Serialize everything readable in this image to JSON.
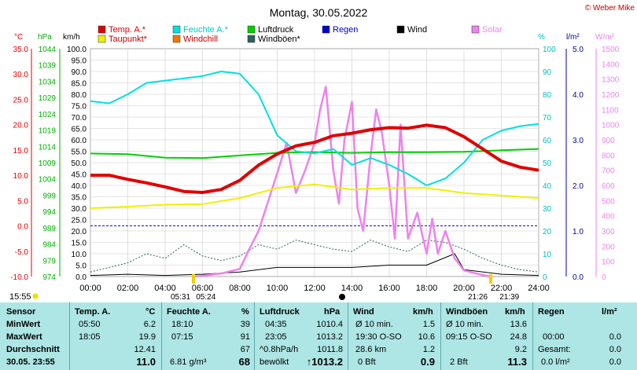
{
  "header": {
    "title": "Montag, 30.05.2022",
    "copyright": "© Weber Mike"
  },
  "legend": [
    {
      "label": "Temp. A.*",
      "color": "#e00000"
    },
    {
      "label": "Feuchte A.*",
      "color": "#00e0e0"
    },
    {
      "label": "Luftdruck",
      "color": "#00d000"
    },
    {
      "label": "Regen",
      "color": "#0000d0"
    },
    {
      "label": "Wind",
      "color": "#000000"
    },
    {
      "label": "Solar",
      "color": "#ee82ee"
    },
    {
      "label": "Taupunkt*",
      "color": "#f0f000"
    },
    {
      "label": "Windchill",
      "color": "#f07800"
    },
    {
      "label": "Windböen*",
      "color": "#306060"
    }
  ],
  "axis_units": {
    "temp": "°C",
    "press": "hPa",
    "wind": "km/h",
    "hum": "%",
    "rain": "l/m²",
    "solar": "W/m²"
  },
  "axes": {
    "temp": {
      "ticks": [
        "35.0",
        "30.0",
        "25.0",
        "20.0",
        "15.0",
        "10.0",
        "5.0",
        "0.0",
        "-5.0",
        "-10.0"
      ],
      "color": "#e00000"
    },
    "press": {
      "ticks": [
        "1044",
        "1039",
        "1034",
        "1029",
        "1024",
        "1019",
        "1014",
        "1009",
        "1004",
        "999",
        "994",
        "989",
        "984",
        "979",
        "974"
      ],
      "color": "#00b000"
    },
    "wind": {
      "ticks": [
        "100.0",
        "95.0",
        "90.0",
        "85.0",
        "80.0",
        "75.0",
        "70.0",
        "65.0",
        "60.0",
        "55.0",
        "50.0",
        "45.0",
        "40.0",
        "35.0",
        "30.0",
        "25.0",
        "20.0",
        "15.0",
        "10.0",
        "5.0",
        "0.0"
      ],
      "color": "#000000"
    },
    "hum": {
      "ticks": [
        "100",
        "90",
        "80",
        "70",
        "60",
        "50",
        "40",
        "30",
        "20",
        "10",
        "0"
      ],
      "color": "#00c0c0"
    },
    "rain": {
      "ticks": [
        "5.0",
        "4.0",
        "3.0",
        "2.0",
        "1.0",
        "0.0"
      ],
      "color": "#000090"
    },
    "solar": {
      "ticks": [
        "1500",
        "1400",
        "1300",
        "1200",
        "1100",
        "1000",
        "900",
        "800",
        "700",
        "600",
        "500",
        "400",
        "300",
        "200",
        "100",
        "0"
      ],
      "color": "#ee82ee"
    },
    "x": {
      "ticks": [
        "00:00",
        "02:00",
        "04:00",
        "06:00",
        "08:00",
        "10:00",
        "12:00",
        "14:00",
        "16:00",
        "18:00",
        "20:00",
        "22:00",
        "24:00"
      ]
    }
  },
  "markers": {
    "now_time": "15:55",
    "sunrise_a": "05:31",
    "sunrise_b": "05:24",
    "sunset_a": "21:26",
    "sunset_b": "21:39"
  },
  "chart_data": {
    "type": "line",
    "x_range": [
      "00:00",
      "24:00"
    ],
    "series": [
      {
        "name": "Temp. A.*",
        "unit": "°C",
        "range": [
          -10,
          35
        ],
        "color": "#e00000",
        "x": [
          0,
          1,
          2,
          3,
          4,
          5,
          6,
          7,
          8,
          9,
          10,
          11,
          12,
          13,
          14,
          15,
          16,
          17,
          18,
          19,
          20,
          21,
          22,
          23,
          24
        ],
        "y": [
          10,
          10,
          9.2,
          8.5,
          7.7,
          6.8,
          6.6,
          7.2,
          9.0,
          12.0,
          14.2,
          15.8,
          16.5,
          17.8,
          18.3,
          19.0,
          19.4,
          19.3,
          19.9,
          19.4,
          17.6,
          15.2,
          12.8,
          11.6,
          11.0
        ]
      },
      {
        "name": "Feuchte A.*",
        "unit": "%",
        "range": [
          0,
          100
        ],
        "color": "#00e0e0",
        "x": [
          0,
          1,
          2,
          3,
          4,
          5,
          6,
          7,
          8,
          9,
          10,
          11,
          12,
          13,
          14,
          15,
          16,
          17,
          18,
          19,
          20,
          21,
          22,
          23,
          24
        ],
        "y": [
          77,
          76,
          80,
          85,
          86,
          87,
          88,
          90,
          89,
          80,
          62,
          55,
          54,
          56,
          49,
          52,
          49,
          45,
          40,
          43,
          50,
          60,
          64,
          66,
          67
        ]
      },
      {
        "name": "Luftdruck",
        "unit": "hPa",
        "range": [
          974,
          1044
        ],
        "color": "#00d000",
        "x": [
          0,
          2,
          4,
          6,
          8,
          10,
          12,
          14,
          16,
          18,
          20,
          22,
          24
        ],
        "y": [
          1011.8,
          1011.6,
          1010.5,
          1010.4,
          1011.2,
          1012.0,
          1012.2,
          1012.0,
          1012.2,
          1012.2,
          1012.3,
          1012.8,
          1013.2
        ]
      },
      {
        "name": "Taupunkt*",
        "unit": "°C",
        "range": [
          -10,
          35
        ],
        "color": "#f0f000",
        "x": [
          0,
          2,
          4,
          6,
          8,
          10,
          12,
          14,
          16,
          18,
          20,
          22,
          24
        ],
        "y": [
          3.5,
          3.8,
          4.2,
          4.3,
          5.5,
          7.5,
          8.2,
          7.2,
          7.5,
          7.5,
          6.5,
          6.0,
          5.5
        ]
      },
      {
        "name": "Wind",
        "unit": "km/h",
        "range": [
          0,
          100
        ],
        "color": "#000000",
        "x": [
          0,
          2,
          4,
          6,
          8,
          10,
          12,
          14,
          16,
          18,
          19.5,
          20,
          22,
          24
        ],
        "y": [
          0.5,
          1,
          0.5,
          1,
          2,
          4,
          4,
          4,
          5,
          5,
          10,
          3,
          1,
          0.5
        ]
      },
      {
        "name": "Windböen*",
        "unit": "km/h",
        "range": [
          0,
          100
        ],
        "color": "#306060",
        "x": [
          0,
          1,
          2,
          3,
          4,
          5,
          6,
          7,
          8,
          9,
          10,
          11,
          12,
          13,
          14,
          15,
          16,
          17,
          18,
          19,
          20,
          21,
          22,
          23,
          24
        ],
        "y": [
          2,
          4,
          6,
          10,
          8,
          14,
          9,
          7,
          9,
          14,
          12,
          16,
          14,
          12,
          11,
          16,
          13,
          11,
          16,
          15,
          12,
          8,
          5,
          3,
          2
        ]
      },
      {
        "name": "Solar",
        "unit": "W/m²",
        "range": [
          0,
          1500
        ],
        "color": "#ee82ee",
        "x": [
          5.5,
          6,
          7,
          8,
          8.5,
          9,
          10,
          10.5,
          11,
          11.5,
          12,
          12.3,
          12.6,
          13,
          13.3,
          13.6,
          14,
          14.3,
          14.6,
          15,
          15.3,
          15.6,
          16,
          16.3,
          16.6,
          17,
          17.5,
          18,
          18.3,
          18.6,
          19,
          19.5,
          20,
          21,
          21.4
        ],
        "y": [
          0,
          5,
          20,
          50,
          180,
          300,
          680,
          880,
          550,
          700,
          880,
          1100,
          1250,
          700,
          480,
          900,
          1150,
          450,
          300,
          800,
          1100,
          950,
          600,
          250,
          1000,
          250,
          420,
          150,
          380,
          150,
          300,
          120,
          40,
          10,
          0
        ]
      }
    ]
  },
  "table": {
    "headers": [
      "Sensor",
      "Temp. A.",
      "°C",
      "Feuchte A.",
      "%",
      "Luftdruck",
      "hPa",
      "Wind",
      "km/h",
      "Windböen",
      "km/h",
      "Regen",
      "l/m²"
    ],
    "rows": [
      {
        "label": "MinWert",
        "cells": [
          "05:50",
          "6.2",
          "18:10",
          "39",
          "04:35",
          "1010.4",
          "Ø 10 min.",
          "1.5",
          "Ø 10 min.",
          "13.6",
          "",
          ""
        ]
      },
      {
        "label": "MaxWert",
        "cells": [
          "18:05",
          "19.9",
          "07:15",
          "91",
          "23:05",
          "1013.2",
          "19:30  O-SO",
          "10.6",
          "09:15  O-SO",
          "24.8",
          "00:00",
          "0.0"
        ]
      },
      {
        "label": "Durchschnitt",
        "cells": [
          "",
          "12.41",
          "",
          "67",
          "^0.8hPa/h",
          "1011.8",
          "28.6 km",
          "1.2",
          "",
          "9.2",
          "Gesamt:",
          "0.0"
        ]
      },
      {
        "label": "30.05. 23:55",
        "cells": [
          "",
          "11.0",
          "6.81 g/m³",
          "68",
          "bewölkt",
          "↑1013.2",
          "0 Bft",
          "0.9",
          "2 Bft",
          "11.3",
          "0.0 l/m²",
          "0.0"
        ]
      }
    ]
  }
}
